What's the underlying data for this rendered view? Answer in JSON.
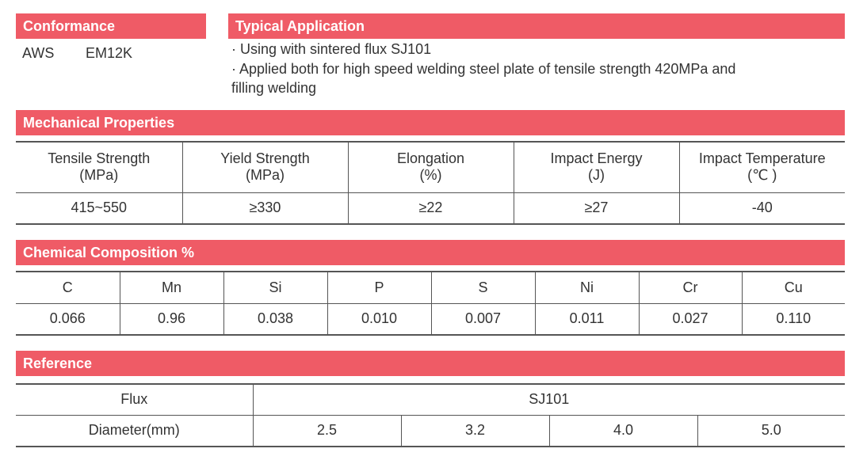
{
  "conformance": {
    "title": "Conformance",
    "standard": "AWS",
    "classification": "EM12K"
  },
  "typical_application": {
    "title": "Typical Application",
    "line1": "· Using with sintered flux SJ101",
    "line2": "· Applied both for high speed welding steel plate of tensile strength 420MPa and",
    "line3": "filling welding"
  },
  "mechanical": {
    "title": "Mechanical Properties",
    "headers": [
      {
        "name": "Tensile Strength",
        "unit": "(MPa)"
      },
      {
        "name": "Yield Strength",
        "unit": "(MPa)"
      },
      {
        "name": "Elongation",
        "unit": "(%)"
      },
      {
        "name": "Impact Energy",
        "unit": "(J)"
      },
      {
        "name": "Impact Temperature",
        "unit": "(℃ )"
      }
    ],
    "values": [
      "415~550",
      "≥330",
      "≥22",
      "≥27",
      "-40"
    ]
  },
  "chemical": {
    "title": "Chemical Composition %",
    "elements": [
      "C",
      "Mn",
      "Si",
      "P",
      "S",
      "Ni",
      "Cr",
      "Cu"
    ],
    "values": [
      "0.066",
      "0.96",
      "0.038",
      "0.010",
      "0.007",
      "0.011",
      "0.027",
      "0.110"
    ]
  },
  "reference": {
    "title": "Reference",
    "flux_label": "Flux",
    "flux_value": "SJ101",
    "diameter_label": "Diameter(mm)",
    "diameters": [
      "2.5",
      "3.2",
      "4.0",
      "5.0"
    ]
  },
  "colors": {
    "accent": "#ef5b66"
  }
}
